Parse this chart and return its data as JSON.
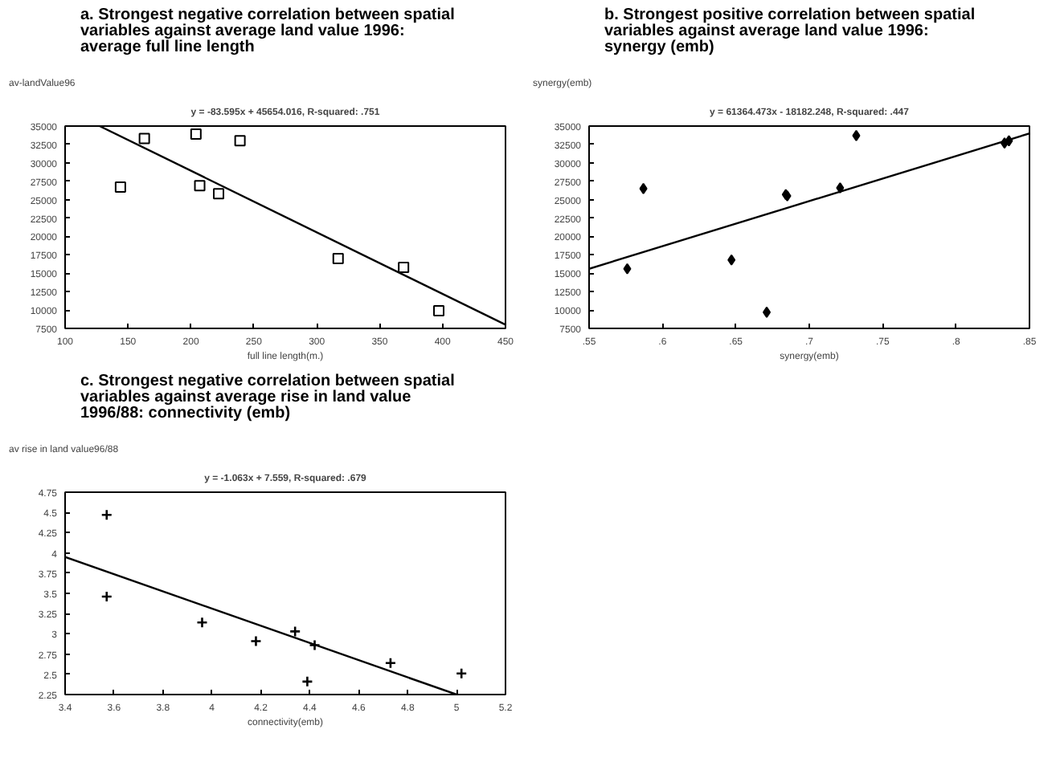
{
  "chart_data": [
    {
      "type": "scatter",
      "title": "a. Strongest negative correlation between spatial variables against average land value 1996: average full line length",
      "ylabel": "av-landValue96",
      "xlabel": "full line length(m.)",
      "annotations": [
        "y = -83.595x + 45654.016, R-squared: .751"
      ],
      "marker": "square",
      "xlim": [
        100,
        450
      ],
      "ylim": [
        7500,
        35000
      ],
      "xticks": [
        100,
        150,
        200,
        250,
        300,
        350,
        400,
        450
      ],
      "yticks": [
        7500,
        10000,
        12500,
        15000,
        17500,
        20000,
        22500,
        25000,
        27500,
        30000,
        32500,
        35000
      ],
      "grid": false,
      "series": [
        {
          "color": "#000000",
          "x": [
            144,
            163,
            204,
            207,
            222,
            239,
            317,
            369,
            397
          ],
          "values": [
            26700,
            33300,
            33900,
            26900,
            25800,
            33000,
            17000,
            15800,
            9900
          ]
        },
        {
          "type": "line",
          "marker": "none",
          "color": "#000000",
          "x": [
            127.4,
            450
          ],
          "values": [
            35000,
            8000
          ]
        }
      ]
    },
    {
      "type": "scatter",
      "title": "b.  Strongest positive correlation between spatial variables against average land value 1996: synergy (emb)",
      "ylabel": "synergy(emb)",
      "xlabel": "synergy(emb)",
      "annotations": [
        "y = 61364.473x - 18182.248, R-squared: .447"
      ],
      "marker": "diamond",
      "xlim": [
        0.55,
        0.85
      ],
      "ylim": [
        7500,
        35000
      ],
      "xticks": [
        {
          "value": 0.55,
          "label": ".55"
        },
        {
          "value": 0.6,
          "label": ".6"
        },
        {
          "value": 0.65,
          "label": ".65"
        },
        {
          "value": 0.7,
          "label": ".7"
        },
        {
          "value": 0.75,
          "label": ".75"
        },
        {
          "value": 0.8,
          "label": ".8"
        },
        {
          "value": 0.85,
          "label": ".85"
        }
      ],
      "yticks": [
        7500,
        10000,
        12500,
        15000,
        17500,
        20000,
        22500,
        25000,
        27500,
        30000,
        32500,
        35000
      ],
      "grid": false,
      "series": [
        {
          "color": "#000000",
          "x": [
            0.576,
            0.587,
            0.647,
            0.671,
            0.684,
            0.685,
            0.721,
            0.732,
            0.833,
            0.836
          ],
          "values": [
            15600,
            26500,
            16800,
            9700,
            25700,
            25500,
            26600,
            33700,
            32700,
            33000
          ]
        },
        {
          "type": "line",
          "marker": "none",
          "color": "#000000",
          "x": [
            0.55,
            0.85
          ],
          "values": [
            15600,
            34000
          ]
        }
      ]
    },
    {
      "type": "scatter",
      "title": "c. Strongest negative correlation between spatial variables against average rise in land value 1996/88: connectivity (emb)",
      "ylabel": "av rise in land value96/88",
      "xlabel": "connectivity(emb)",
      "annotations": [
        "y = -1.063x + 7.559, R-squared: .679"
      ],
      "marker": "cross",
      "xlim": [
        3.4,
        5.2
      ],
      "ylim": [
        2.25,
        4.75
      ],
      "xticks": [
        3.4,
        3.6,
        3.8,
        4,
        4.2,
        4.4,
        4.6,
        4.8,
        5,
        5.2
      ],
      "yticks": [
        2.25,
        2.5,
        2.75,
        3,
        3.25,
        3.5,
        3.75,
        4,
        4.25,
        4.5,
        4.75
      ],
      "grid": false,
      "series": [
        {
          "color": "#000000",
          "x": [
            3.57,
            3.57,
            3.96,
            4.18,
            4.34,
            4.39,
            4.42,
            4.73,
            5.02
          ],
          "values": [
            4.47,
            3.46,
            3.14,
            2.91,
            3.03,
            2.41,
            2.86,
            2.64,
            2.51
          ]
        },
        {
          "type": "line",
          "marker": "none",
          "color": "#000000",
          "x": [
            3.4,
            5
          ],
          "values": [
            3.95,
            2.25
          ]
        }
      ]
    }
  ]
}
